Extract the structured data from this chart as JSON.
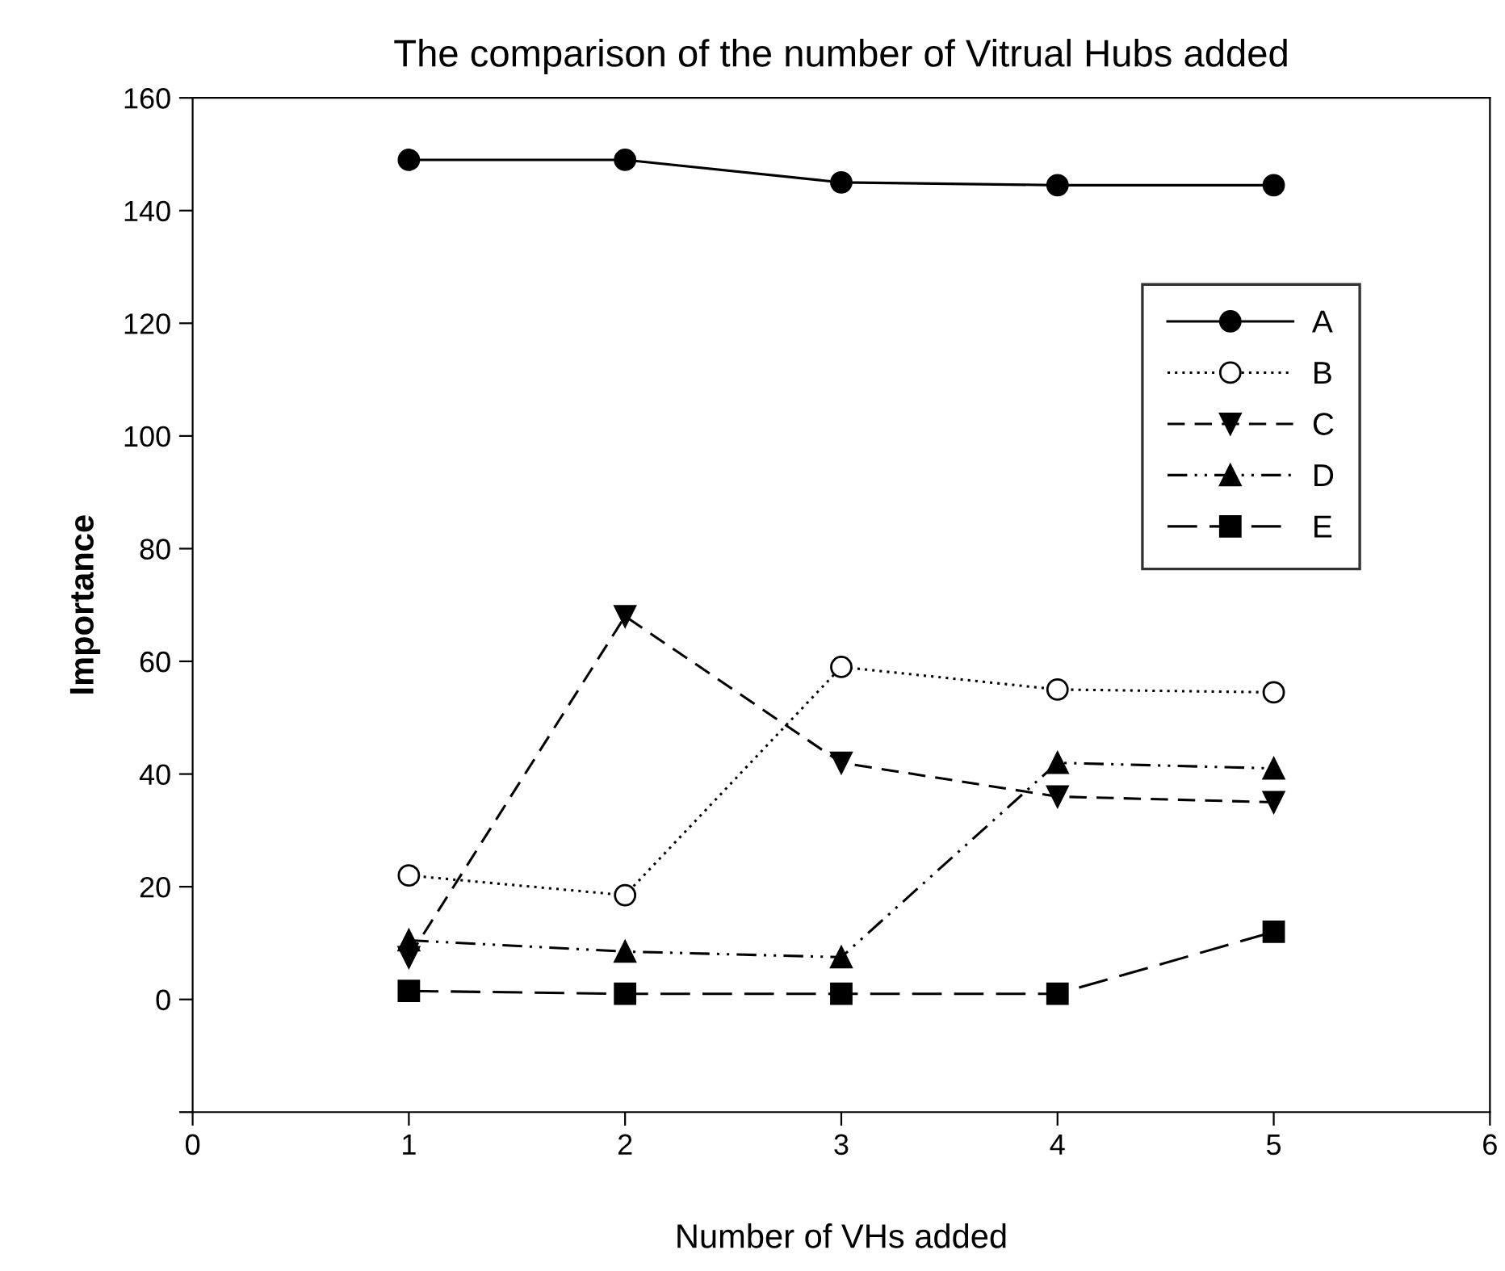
{
  "chart_data": {
    "type": "line",
    "title": "The comparison of the number of Vitrual Hubs added",
    "xlabel": "Number of VHs added",
    "ylabel": "Importance",
    "x": [
      1,
      2,
      3,
      4,
      5
    ],
    "xlim": [
      0,
      6
    ],
    "xticks": [
      0,
      1,
      2,
      3,
      4,
      5,
      6
    ],
    "ylim": [
      -20,
      160
    ],
    "yticks": [
      {
        "value": -20,
        "label": null
      },
      0,
      20,
      40,
      60,
      80,
      100,
      120,
      140,
      160
    ],
    "grid": false,
    "legend": "right",
    "series": [
      {
        "name": "A",
        "color": "#000000",
        "marker": "circle",
        "line_style": "solid",
        "values": [
          149,
          149,
          145,
          144.5,
          144.5
        ]
      },
      {
        "name": "B",
        "color": "#000000",
        "marker": "open circle",
        "line_style": "dotted",
        "values": [
          22,
          18.5,
          59,
          55,
          54.5
        ]
      },
      {
        "name": "C",
        "color": "#000000",
        "marker": "triangle_down",
        "line_style": "dashed",
        "values": [
          7.5,
          68,
          42,
          36,
          35
        ]
      },
      {
        "name": "D",
        "color": "#000000",
        "marker": "triangle",
        "line_style": "dashdotdot",
        "values": [
          10.5,
          8.5,
          7.5,
          42,
          41
        ]
      },
      {
        "name": "E",
        "color": "#000000",
        "marker": "square",
        "line_style": "longdash",
        "values": [
          1.5,
          1,
          1,
          1,
          12
        ]
      }
    ]
  }
}
